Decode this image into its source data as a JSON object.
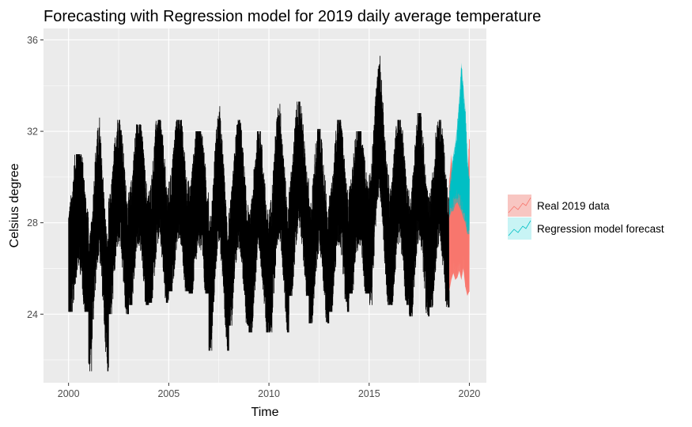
{
  "chart_data": {
    "type": "line",
    "title": "Forecasting with Regression model for 2019 daily average temperature",
    "xlabel": "Time",
    "ylabel": "Celsius degree",
    "xlim": [
      1998.75,
      2020.85
    ],
    "ylim": [
      21.0,
      36.5
    ],
    "x_ticks": [
      2000,
      2005,
      2010,
      2015,
      2020
    ],
    "x_tick_labels": [
      "2000",
      "2005",
      "2010",
      "2015",
      "2020"
    ],
    "y_ticks": [
      24,
      28,
      32,
      36
    ],
    "y_tick_labels": [
      "24",
      "28",
      "32",
      "36"
    ],
    "grid": true,
    "legend_position": "right",
    "background_color": "#ebebeb",
    "grid_color": "#ffffff",
    "historical": {
      "x_range": [
        2000.0,
        2019.0
      ],
      "color": "#000000",
      "annual_envelope": [
        {
          "year": 2000,
          "min": 24.1,
          "max": 31.0
        },
        {
          "year": 2001,
          "min": 21.5,
          "max": 32.6
        },
        {
          "year": 2002,
          "min": 24.0,
          "max": 32.5
        },
        {
          "year": 2003,
          "min": 24.4,
          "max": 32.3
        },
        {
          "year": 2004,
          "min": 24.5,
          "max": 32.5
        },
        {
          "year": 2005,
          "min": 25.0,
          "max": 32.5
        },
        {
          "year": 2006,
          "min": 24.9,
          "max": 32.0
        },
        {
          "year": 2007,
          "min": 22.4,
          "max": 33.1
        },
        {
          "year": 2008,
          "min": 23.5,
          "max": 32.5
        },
        {
          "year": 2009,
          "min": 23.2,
          "max": 32.0
        },
        {
          "year": 2010,
          "min": 23.2,
          "max": 33.2
        },
        {
          "year": 2011,
          "min": 24.8,
          "max": 33.3
        },
        {
          "year": 2012,
          "min": 23.6,
          "max": 32.1
        },
        {
          "year": 2013,
          "min": 24.1,
          "max": 32.5
        },
        {
          "year": 2014,
          "min": 24.9,
          "max": 32.0
        },
        {
          "year": 2015,
          "min": 24.4,
          "max": 35.3
        },
        {
          "year": 2016,
          "min": 24.4,
          "max": 32.5
        },
        {
          "year": 2017,
          "min": 23.9,
          "max": 32.8
        },
        {
          "year": 2018,
          "min": 24.3,
          "max": 32.5
        }
      ]
    },
    "series": [
      {
        "name": "Real 2019 data",
        "color": "#f8766d",
        "fill": "#f8c6c2",
        "x": [
          2019.0,
          2019.1,
          2019.2,
          2019.3,
          2019.4,
          2019.5,
          2019.6,
          2019.7,
          2019.8,
          2019.9,
          2020.0
        ],
        "lower": [
          25.0,
          25.5,
          25.8,
          25.5,
          25.6,
          25.9,
          25.5,
          26.0,
          25.2,
          24.8,
          25.0
        ],
        "upper": [
          29.8,
          31.0,
          29.5,
          30.5,
          29.9,
          30.8,
          31.2,
          32.0,
          30.5,
          29.5,
          31.8
        ]
      },
      {
        "name": "Regression model forecast",
        "color": "#00bfc4",
        "fill": "#c8f4f5",
        "x": [
          2019.0,
          2019.1,
          2019.2,
          2019.3,
          2019.4,
          2019.5,
          2019.6,
          2019.7,
          2019.8,
          2019.9,
          2020.0
        ],
        "lower": [
          28.2,
          28.5,
          28.5,
          28.8,
          28.9,
          28.7,
          28.5,
          28.2,
          28.0,
          27.5,
          27.5
        ],
        "upper": [
          29.5,
          30.3,
          31.0,
          31.5,
          32.3,
          33.5,
          35.0,
          34.0,
          33.0,
          31.0,
          30.0
        ]
      }
    ]
  }
}
